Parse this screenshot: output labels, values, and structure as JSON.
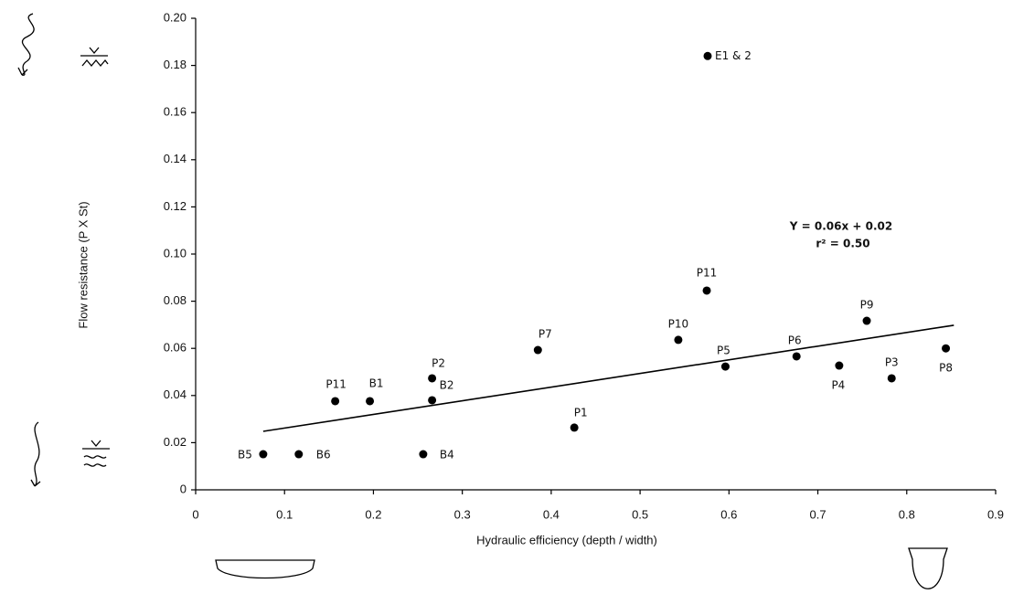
{
  "chart_data": {
    "type": "scatter",
    "x_label": "Hydraulic efficiency (depth / width)",
    "y_label": "Flow resistance (P X St)",
    "xlim": [
      0,
      0.9
    ],
    "xticks": [
      0,
      0.1,
      0.2,
      0.3,
      0.4,
      0.5,
      0.6,
      0.7,
      0.8,
      0.9
    ],
    "ylim": [
      0,
      0.2
    ],
    "yticks": [
      0,
      0.02,
      0.04,
      0.06,
      0.08,
      {
        "value": 0.1,
        "label": "0.10"
      },
      0.12,
      0.14,
      0.16,
      0.18,
      {
        "value": 0.2,
        "label": "0.20"
      }
    ],
    "color": "#000000",
    "points": {
      "labels": [
        "E1 & 2",
        "P11",
        "P9",
        "P10",
        "P7",
        "P6",
        "P8",
        "P5",
        "P4",
        "P3",
        "P2",
        "B2",
        "B1",
        "P11",
        "P1",
        "B5",
        "B6",
        "B4"
      ],
      "x": [
        0.576,
        0.575,
        0.755,
        0.543,
        0.385,
        0.676,
        0.844,
        0.596,
        0.724,
        0.783,
        0.266,
        0.266,
        0.196,
        0.157,
        0.426,
        0.076,
        0.116,
        0.256
      ],
      "y": [
        0.184,
        0.0845,
        0.0717,
        0.0636,
        0.0593,
        0.0566,
        0.06,
        0.0523,
        0.0527,
        0.0473,
        0.0473,
        0.038,
        0.0376,
        0.0376,
        0.0264,
        0.0151,
        0.0151,
        0.0151
      ]
    },
    "trendline": {
      "x": [
        0.076,
        0.853
      ],
      "y": [
        0.0248,
        0.0698
      ],
      "equation": "Y = 0.06x + 0.02",
      "r2": "r² = 0.50"
    }
  }
}
